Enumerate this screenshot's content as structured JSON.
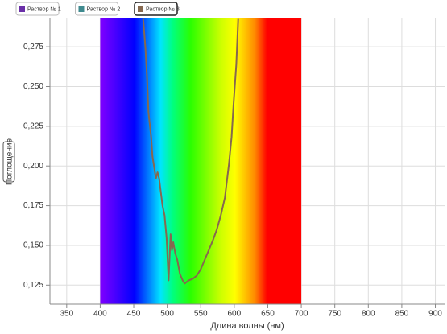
{
  "chart_data": {
    "type": "line",
    "x_label": "Длина волны (нм)",
    "y_label": "Поглощение",
    "spectrum_range": [
      400,
      700
    ],
    "series": [
      {
        "name": "Раствор № 1",
        "color": "#6a2fa8",
        "visible": false
      },
      {
        "name": "Раствор № 2",
        "color": "#3f8a8f",
        "visible": false
      },
      {
        "name": "Раствор № 3",
        "color": "#86684f",
        "visible": true,
        "x": [
          464,
          467.5,
          470,
          472,
          476,
          478,
          481,
          483,
          485.5,
          488,
          490,
          493,
          496,
          499,
          501,
          502,
          505,
          507,
          509,
          512,
          515,
          519,
          523,
          526,
          532,
          538,
          544,
          550,
          556,
          562,
          568,
          574,
          580,
          586,
          592,
          596,
          599,
          603,
          606
        ],
        "values": [
          0.293,
          0.274,
          0.254,
          0.234,
          0.218,
          0.206,
          0.198,
          0.192,
          0.196,
          0.192,
          0.185,
          0.175,
          0.169,
          0.155,
          0.137,
          0.128,
          0.157,
          0.147,
          0.152,
          0.145,
          0.141,
          0.132,
          0.128,
          0.126,
          0.128,
          0.129,
          0.131,
          0.135,
          0.141,
          0.147,
          0.153,
          0.16,
          0.169,
          0.18,
          0.201,
          0.218,
          0.239,
          0.264,
          0.293
        ]
      }
    ],
    "xlim": [
      325,
      915
    ],
    "ylim": [
      0.113,
      0.2933
    ],
    "xticks": [
      350,
      400,
      450,
      500,
      550,
      600,
      650,
      700,
      750,
      800,
      850,
      900
    ],
    "yticks": [
      {
        "value": 0.125,
        "label": "0,125"
      },
      {
        "value": 0.15,
        "label": "0,150"
      },
      {
        "value": 0.175,
        "label": "0,175"
      },
      {
        "value": 0.2,
        "label": "0,200"
      },
      {
        "value": 0.225,
        "label": "0,225"
      },
      {
        "value": 0.25,
        "label": "0,250"
      },
      {
        "value": 0.275,
        "label": "0,275"
      }
    ],
    "grid": true
  }
}
